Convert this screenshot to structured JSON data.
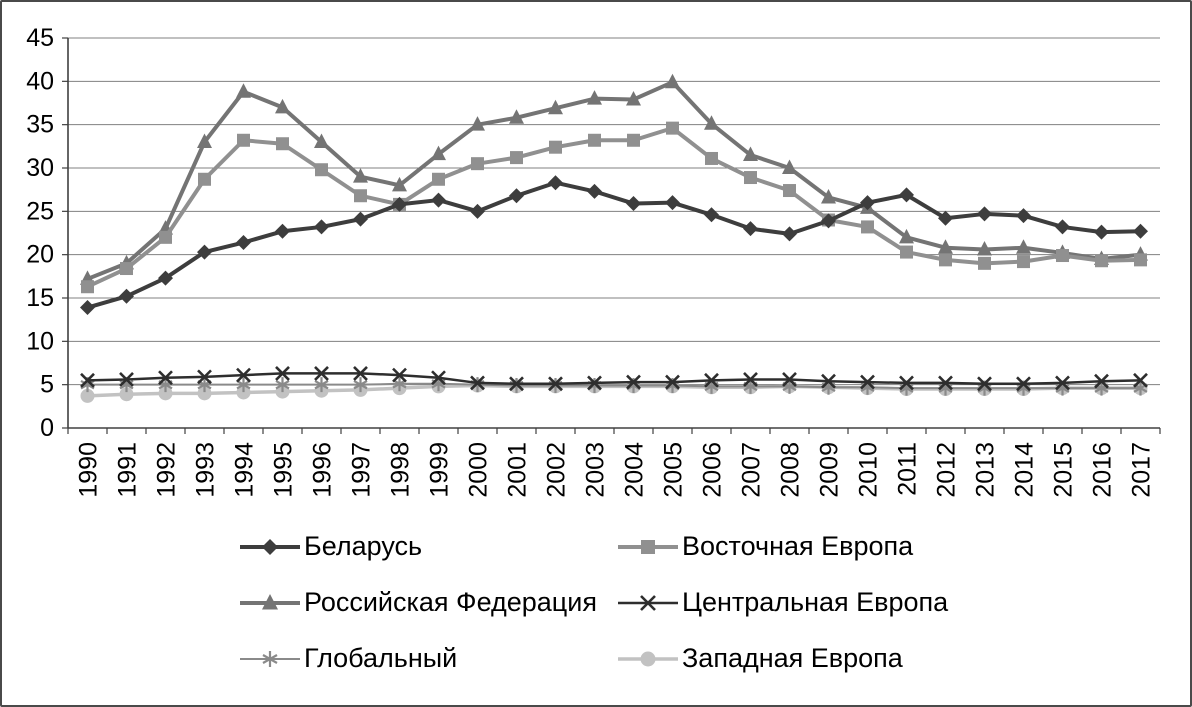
{
  "chart_data": {
    "type": "line",
    "title": "",
    "xlabel": "",
    "ylabel": "",
    "ylim": [
      0,
      45
    ],
    "yticks": [
      0,
      5,
      10,
      15,
      20,
      25,
      30,
      35,
      40,
      45
    ],
    "grid": "horizontal",
    "grid_color": "#808080",
    "axis_color": "#404040",
    "legend_position": "bottom",
    "x": [
      1990,
      1991,
      1992,
      1993,
      1994,
      1995,
      1996,
      1997,
      1998,
      1999,
      2000,
      2001,
      2002,
      2003,
      2004,
      2005,
      2006,
      2007,
      2008,
      2009,
      2010,
      2011,
      2012,
      2013,
      2014,
      2015,
      2016,
      2017
    ],
    "series": [
      {
        "id": "belarus",
        "name": "Беларусь",
        "marker": "diamond",
        "color": "#3d3d3d",
        "line_width": 4,
        "values": [
          13.9,
          15.2,
          17.3,
          20.3,
          21.4,
          22.7,
          23.2,
          24.1,
          25.8,
          26.3,
          25.0,
          26.8,
          28.3,
          27.3,
          25.9,
          26.0,
          24.6,
          23.0,
          22.4,
          23.9,
          26.0,
          26.9,
          24.2,
          24.7,
          24.5,
          23.2,
          22.6,
          22.7
        ]
      },
      {
        "id": "eastern-europe",
        "name": "Восточная Европа",
        "marker": "square",
        "color": "#909090",
        "line_width": 4,
        "values": [
          16.3,
          18.4,
          22.0,
          28.7,
          33.2,
          32.8,
          29.8,
          26.8,
          25.8,
          28.7,
          30.5,
          31.2,
          32.4,
          33.2,
          33.2,
          34.6,
          31.1,
          28.9,
          27.4,
          24.0,
          23.2,
          20.3,
          19.4,
          19.0,
          19.2,
          19.9,
          19.3,
          19.4
        ]
      },
      {
        "id": "russian-federation",
        "name": "Российская Федерация",
        "marker": "triangle",
        "color": "#747474",
        "line_width": 4,
        "values": [
          17.2,
          19.0,
          23.0,
          33.0,
          38.8,
          37.0,
          33.0,
          29.0,
          28.0,
          31.6,
          35.0,
          35.8,
          36.9,
          38.0,
          37.9,
          39.9,
          35.1,
          31.5,
          30.0,
          26.6,
          25.4,
          22.0,
          20.8,
          20.6,
          20.8,
          20.2,
          19.5,
          20.0
        ]
      },
      {
        "id": "central-europe",
        "name": "Центральная Европа",
        "marker": "x",
        "color": "#2e2e2e",
        "line_width": 2.5,
        "values": [
          5.5,
          5.6,
          5.8,
          5.9,
          6.1,
          6.3,
          6.3,
          6.3,
          6.1,
          5.8,
          5.2,
          5.1,
          5.1,
          5.2,
          5.3,
          5.3,
          5.5,
          5.6,
          5.6,
          5.4,
          5.3,
          5.2,
          5.2,
          5.1,
          5.1,
          5.2,
          5.4,
          5.5
        ]
      },
      {
        "id": "global",
        "name": "Глобальный",
        "marker": "asterisk",
        "color": "#8a8a8a",
        "line_width": 2,
        "values": [
          5.0,
          5.0,
          5.0,
          5.0,
          5.0,
          5.0,
          5.0,
          5.0,
          5.1,
          5.1,
          5.0,
          4.9,
          4.9,
          4.9,
          4.9,
          4.9,
          4.8,
          4.8,
          4.8,
          4.7,
          4.7,
          4.6,
          4.6,
          4.6,
          4.6,
          4.6,
          4.6,
          4.6
        ]
      },
      {
        "id": "western-europe",
        "name": "Западная Европа",
        "marker": "circle",
        "color": "#c2c2c2",
        "line_width": 3.5,
        "values": [
          3.7,
          3.9,
          4.0,
          4.0,
          4.1,
          4.2,
          4.3,
          4.4,
          4.6,
          4.8,
          4.9,
          4.8,
          4.8,
          4.8,
          4.8,
          4.8,
          4.7,
          4.7,
          4.8,
          4.7,
          4.6,
          4.5,
          4.5,
          4.5,
          4.5,
          4.6,
          4.6,
          4.6
        ]
      }
    ]
  }
}
